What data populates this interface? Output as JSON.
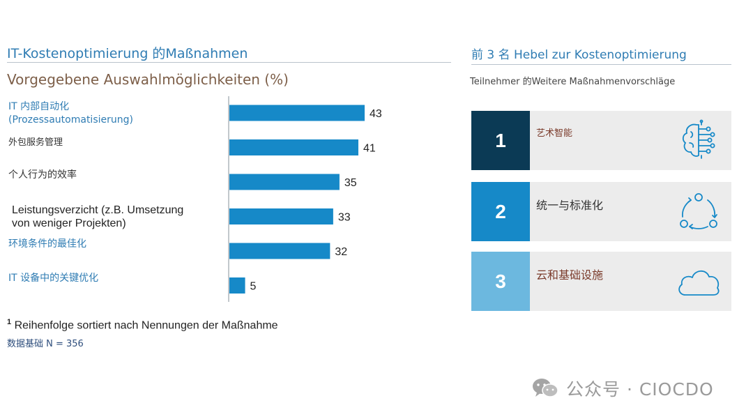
{
  "left_panel": {
    "title": "IT-Kostenoptimierung 的Maßnahmen",
    "subtitle": "Vorgegebene Auswahlmöglichkeiten (%)",
    "footnote_mark": "1",
    "footnote_text": " Reihenfolge sortiert nach Nennungen der Maßnahme",
    "base_note": "数据基础 N = 356"
  },
  "chart_data": {
    "type": "bar",
    "orientation": "horizontal",
    "categories": [
      "IT 内部自动化 (Prozessautomatisierung)",
      "外包服务管理",
      "个人行为的效率",
      "Leistungsverzicht (z.B. Umsetzung von weniger Projekten)",
      "环境条件的最佳化",
      "IT 设备中的关键优化"
    ],
    "category_lines": [
      [
        "IT 内部自动化",
        "(Prozessautomatisierung)"
      ],
      [
        "外包服务管理"
      ],
      [
        "个人行为的效率"
      ],
      [
        "Leistungsverzicht (z.B. Umsetzung",
        "von weniger Projekten)"
      ],
      [
        "环境条件的最佳化"
      ],
      [
        "IT 设备中的关键优化"
      ]
    ],
    "values": [
      43,
      41,
      35,
      33,
      32,
      5
    ],
    "title": "Vorgegebene Auswahlmöglichkeiten (%)",
    "xlabel": "",
    "ylabel": "",
    "bar_color": "#1689c8",
    "axis_color": "#9aa3ab",
    "data_labels": true
  },
  "right_panel": {
    "title": "前 3 名 Hebel zur Kostenoptimierung",
    "subtitle": "Teilnehmer 的Weitere Maßnahmenvorschläge",
    "levers": [
      {
        "number": "1",
        "label": "艺术智能",
        "color": "#0b3a55",
        "label_color": "#7a3a2a",
        "icon": "brain-circuit-icon"
      },
      {
        "number": "2",
        "label": "统一与标准化",
        "color": "#1689c8",
        "label_color": "#333333",
        "icon": "cycle-arrows-icon"
      },
      {
        "number": "3",
        "label": "云和基础设施",
        "color": "#6cb8df",
        "label_color": "#7a3a2a",
        "icon": "cloud-icon"
      }
    ]
  },
  "watermark": {
    "text": "公众号 · CIOCDO",
    "icon": "wechat-icon"
  }
}
